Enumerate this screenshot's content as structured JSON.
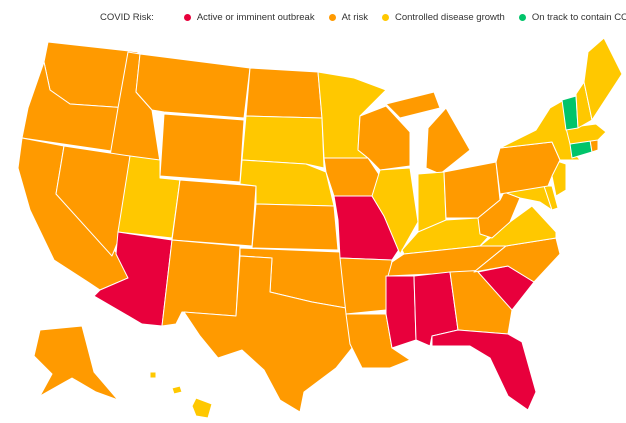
{
  "legend": {
    "title": "COVID Risk:",
    "items": [
      {
        "key": "outbreak",
        "label": "Active or imminent outbreak",
        "color": "#e8003c"
      },
      {
        "key": "risk",
        "label": "At risk",
        "color": "#ff9a00"
      },
      {
        "key": "controlled",
        "label": "Controlled disease growth",
        "color": "#ffc800"
      },
      {
        "key": "contain",
        "label": "On track to contain COVID",
        "color": "#00c46a"
      }
    ]
  },
  "states": {
    "WA": "risk",
    "OR": "risk",
    "CA": "risk",
    "ID": "risk",
    "NV": "risk",
    "MT": "risk",
    "WY": "risk",
    "UT": "controlled",
    "CO": "risk",
    "AZ": "outbreak",
    "NM": "risk",
    "ND": "risk",
    "SD": "controlled",
    "NE": "controlled",
    "KS": "risk",
    "OK": "risk",
    "TX": "risk",
    "MN": "controlled",
    "IA": "risk",
    "MO": "outbreak",
    "AR": "risk",
    "LA": "risk",
    "WI": "risk",
    "IL": "controlled",
    "MI": "risk",
    "IN": "controlled",
    "OH": "risk",
    "KY": "controlled",
    "TN": "risk",
    "MS": "outbreak",
    "AL": "outbreak",
    "GA": "risk",
    "FL": "outbreak",
    "SC": "outbreak",
    "NC": "risk",
    "VA": "controlled",
    "WV": "risk",
    "MD": "controlled",
    "DE": "controlled",
    "NJ": "controlled",
    "PA": "risk",
    "NY": "controlled",
    "CT": "contain",
    "RI": "risk",
    "MA": "controlled",
    "VT": "contain",
    "NH": "controlled",
    "ME": "controlled",
    "AK": "risk",
    "HI": "controlled"
  }
}
